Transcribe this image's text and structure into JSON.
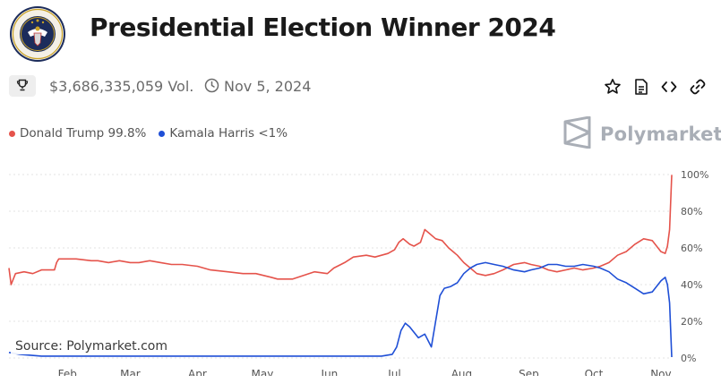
{
  "header": {
    "title": "Presidential Election Winner 2024",
    "volume": "$3,686,335,059 Vol.",
    "end_date": "Nov 5, 2024"
  },
  "brand": {
    "name": "Polymarket"
  },
  "source": "Source: Polymarket.com",
  "legend": [
    {
      "label": "Donald Trump 99.8%",
      "color": "#e5534b"
    },
    {
      "label": "Kamala Harris <1%",
      "color": "#1f4fd6"
    }
  ],
  "icons": [
    "presidential-seal-icon",
    "trophy-icon",
    "clock-icon",
    "star-icon",
    "document-icon",
    "code-icon",
    "link-icon",
    "polymarket-logo-icon"
  ],
  "chart_data": {
    "type": "line",
    "title": "",
    "xlabel": "",
    "ylabel": "",
    "x_ticks": [
      "Feb",
      "Mar",
      "Apr",
      "May",
      "Jun",
      "Jul",
      "Aug",
      "Sep",
      "Oct",
      "Nov"
    ],
    "y_ticks": [
      "100%",
      "80%",
      "60%",
      "40%",
      "20%",
      "0%"
    ],
    "ylim": [
      0,
      100
    ],
    "xlim": [
      "2024-01-05",
      "2024-11-06"
    ],
    "grid": "horizontal dotted",
    "legend_position": "top-left",
    "series": [
      {
        "name": "Donald Trump",
        "color": "#e5534b",
        "points": [
          [
            "2024-01-05",
            49
          ],
          [
            "2024-01-06",
            40
          ],
          [
            "2024-01-08",
            46
          ],
          [
            "2024-01-12",
            47
          ],
          [
            "2024-01-16",
            46
          ],
          [
            "2024-01-20",
            48
          ],
          [
            "2024-01-26",
            48
          ],
          [
            "2024-01-27",
            52
          ],
          [
            "2024-01-28",
            54
          ],
          [
            "2024-02-05",
            54
          ],
          [
            "2024-02-12",
            53
          ],
          [
            "2024-02-15",
            53
          ],
          [
            "2024-02-20",
            52
          ],
          [
            "2024-02-25",
            53
          ],
          [
            "2024-03-01",
            52
          ],
          [
            "2024-03-05",
            52
          ],
          [
            "2024-03-10",
            53
          ],
          [
            "2024-03-15",
            52
          ],
          [
            "2024-03-20",
            51
          ],
          [
            "2024-03-25",
            51
          ],
          [
            "2024-04-01",
            50
          ],
          [
            "2024-04-07",
            48
          ],
          [
            "2024-04-15",
            47
          ],
          [
            "2024-04-22",
            46
          ],
          [
            "2024-04-28",
            46
          ],
          [
            "2024-05-05",
            44
          ],
          [
            "2024-05-08",
            43
          ],
          [
            "2024-05-15",
            43
          ],
          [
            "2024-05-20",
            45
          ],
          [
            "2024-05-25",
            47
          ],
          [
            "2024-05-31",
            46
          ],
          [
            "2024-06-03",
            49
          ],
          [
            "2024-06-08",
            52
          ],
          [
            "2024-06-12",
            55
          ],
          [
            "2024-06-18",
            56
          ],
          [
            "2024-06-22",
            55
          ],
          [
            "2024-06-28",
            57
          ],
          [
            "2024-07-01",
            59
          ],
          [
            "2024-07-03",
            63
          ],
          [
            "2024-07-05",
            65
          ],
          [
            "2024-07-08",
            62
          ],
          [
            "2024-07-10",
            61
          ],
          [
            "2024-07-13",
            63
          ],
          [
            "2024-07-15",
            70
          ],
          [
            "2024-07-17",
            68
          ],
          [
            "2024-07-20",
            65
          ],
          [
            "2024-07-23",
            64
          ],
          [
            "2024-07-26",
            60
          ],
          [
            "2024-07-30",
            56
          ],
          [
            "2024-08-02",
            52
          ],
          [
            "2024-08-05",
            49
          ],
          [
            "2024-08-08",
            46
          ],
          [
            "2024-08-12",
            45
          ],
          [
            "2024-08-16",
            46
          ],
          [
            "2024-08-20",
            48
          ],
          [
            "2024-08-25",
            51
          ],
          [
            "2024-08-30",
            52
          ],
          [
            "2024-09-02",
            51
          ],
          [
            "2024-09-06",
            50
          ],
          [
            "2024-09-10",
            48
          ],
          [
            "2024-09-14",
            47
          ],
          [
            "2024-09-18",
            48
          ],
          [
            "2024-09-22",
            49
          ],
          [
            "2024-09-26",
            48
          ],
          [
            "2024-10-01",
            49
          ],
          [
            "2024-10-04",
            50
          ],
          [
            "2024-10-08",
            52
          ],
          [
            "2024-10-12",
            56
          ],
          [
            "2024-10-16",
            58
          ],
          [
            "2024-10-20",
            62
          ],
          [
            "2024-10-24",
            65
          ],
          [
            "2024-10-28",
            64
          ],
          [
            "2024-11-01",
            58
          ],
          [
            "2024-11-03",
            57
          ],
          [
            "2024-11-04",
            61
          ],
          [
            "2024-11-05",
            70
          ],
          [
            "2024-11-06",
            99.8
          ]
        ]
      },
      {
        "name": "Kamala Harris",
        "color": "#1f4fd6",
        "points": [
          [
            "2024-01-05",
            3
          ],
          [
            "2024-01-10",
            2
          ],
          [
            "2024-01-20",
            1
          ],
          [
            "2024-02-01",
            1
          ],
          [
            "2024-03-01",
            1
          ],
          [
            "2024-04-01",
            1
          ],
          [
            "2024-05-01",
            1
          ],
          [
            "2024-06-01",
            1
          ],
          [
            "2024-06-25",
            1
          ],
          [
            "2024-06-30",
            2
          ],
          [
            "2024-07-02",
            6
          ],
          [
            "2024-07-04",
            15
          ],
          [
            "2024-07-06",
            19
          ],
          [
            "2024-07-08",
            17
          ],
          [
            "2024-07-10",
            14
          ],
          [
            "2024-07-12",
            11
          ],
          [
            "2024-07-15",
            13
          ],
          [
            "2024-07-18",
            6
          ],
          [
            "2024-07-20",
            20
          ],
          [
            "2024-07-22",
            34
          ],
          [
            "2024-07-24",
            38
          ],
          [
            "2024-07-27",
            39
          ],
          [
            "2024-07-30",
            41
          ],
          [
            "2024-08-02",
            46
          ],
          [
            "2024-08-05",
            49
          ],
          [
            "2024-08-08",
            51
          ],
          [
            "2024-08-12",
            52
          ],
          [
            "2024-08-16",
            51
          ],
          [
            "2024-08-20",
            50
          ],
          [
            "2024-08-25",
            48
          ],
          [
            "2024-08-30",
            47
          ],
          [
            "2024-09-02",
            48
          ],
          [
            "2024-09-06",
            49
          ],
          [
            "2024-09-10",
            51
          ],
          [
            "2024-09-14",
            51
          ],
          [
            "2024-09-18",
            50
          ],
          [
            "2024-09-22",
            50
          ],
          [
            "2024-09-26",
            51
          ],
          [
            "2024-10-01",
            50
          ],
          [
            "2024-10-04",
            49
          ],
          [
            "2024-10-08",
            47
          ],
          [
            "2024-10-12",
            43
          ],
          [
            "2024-10-16",
            41
          ],
          [
            "2024-10-20",
            38
          ],
          [
            "2024-10-24",
            35
          ],
          [
            "2024-10-28",
            36
          ],
          [
            "2024-11-01",
            42
          ],
          [
            "2024-11-03",
            44
          ],
          [
            "2024-11-04",
            40
          ],
          [
            "2024-11-05",
            30
          ],
          [
            "2024-11-06",
            0.5
          ]
        ]
      }
    ]
  }
}
